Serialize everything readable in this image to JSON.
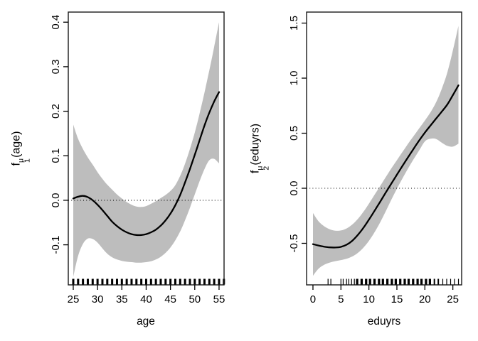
{
  "figure": {
    "background": "#ffffff",
    "band_color": "#bdbdbd",
    "line_color": "#000000",
    "axis_color": "#000000"
  },
  "chart_data": [
    {
      "type": "line",
      "title": "",
      "xlabel": "age",
      "ylabel": "f_1^μ(age)",
      "ylabel_parts": {
        "base": "f",
        "sup": "μ",
        "sub": "1",
        "arg": "(age)"
      },
      "xlim": [
        23.98,
        56.03
      ],
      "ylim": [
        -0.19,
        0.4227
      ],
      "grid": false,
      "zero_line": 0.0,
      "xticks": {
        "values": [
          25,
          30,
          35,
          40,
          45,
          50,
          55
        ],
        "labels": [
          "25",
          "30",
          "35",
          "40",
          "45",
          "50",
          "55"
        ]
      },
      "yticks": {
        "values": [
          -0.1,
          0.0,
          0.1,
          0.2,
          0.3,
          0.4
        ],
        "labels": [
          "-0.1",
          "0.0",
          "0.1",
          "0.2",
          "0.3",
          "0.4"
        ]
      },
      "x": [
        25,
        26,
        27,
        28,
        29,
        30,
        31,
        32,
        33,
        34,
        35,
        36,
        37,
        38,
        39,
        40,
        41,
        42,
        43,
        44,
        45,
        46,
        47,
        48,
        49,
        50,
        51,
        52,
        53,
        54,
        55
      ],
      "series": [
        {
          "name": "fit",
          "values": [
            0.004,
            0.008,
            0.01,
            0.007,
            0.0,
            -0.01,
            -0.022,
            -0.035,
            -0.048,
            -0.058,
            -0.066,
            -0.072,
            -0.076,
            -0.078,
            -0.078,
            -0.076,
            -0.072,
            -0.066,
            -0.057,
            -0.045,
            -0.03,
            -0.011,
            0.012,
            0.04,
            0.07,
            0.102,
            0.135,
            0.168,
            0.197,
            0.222,
            0.243
          ]
        },
        {
          "name": "ci_upper",
          "values": [
            0.17,
            0.138,
            0.115,
            0.096,
            0.08,
            0.063,
            0.048,
            0.035,
            0.024,
            0.013,
            0.004,
            -0.004,
            -0.01,
            -0.014,
            -0.015,
            -0.013,
            -0.008,
            -0.002,
            0.005,
            0.012,
            0.021,
            0.034,
            0.055,
            0.082,
            0.115,
            0.152,
            0.195,
            0.242,
            0.292,
            0.345,
            0.4
          ]
        },
        {
          "name": "ci_lower",
          "values": [
            -0.172,
            -0.125,
            -0.098,
            -0.086,
            -0.087,
            -0.095,
            -0.108,
            -0.12,
            -0.128,
            -0.133,
            -0.136,
            -0.138,
            -0.139,
            -0.14,
            -0.14,
            -0.139,
            -0.137,
            -0.133,
            -0.127,
            -0.118,
            -0.106,
            -0.09,
            -0.07,
            -0.045,
            -0.017,
            0.013,
            0.043,
            0.07,
            0.09,
            0.093,
            0.083
          ]
        }
      ],
      "rug": {
        "x": [
          25,
          26,
          27,
          28,
          29,
          30,
          31,
          32,
          33,
          34,
          35,
          36,
          37,
          38,
          39,
          40,
          41,
          42,
          43,
          44,
          45,
          46,
          47,
          48,
          49,
          50,
          51,
          52,
          53,
          54,
          55,
          56
        ],
        "widths": [
          3,
          3,
          3,
          3,
          3,
          3,
          3,
          3,
          3,
          3,
          3,
          3,
          3,
          3,
          3,
          3,
          3,
          3,
          3,
          3,
          3,
          3,
          3,
          3,
          3,
          3,
          3,
          3,
          3,
          3,
          3,
          3
        ]
      }
    },
    {
      "type": "line",
      "title": "",
      "xlabel": "eduyrs",
      "ylabel": "f_2^μ(eduyrs)",
      "ylabel_parts": {
        "base": "f",
        "sup": "μ",
        "sub": "2",
        "arg": "(eduyrs)"
      },
      "xlim": [
        -1.14,
        26.57
      ],
      "ylim": [
        -0.8774,
        1.6
      ],
      "grid": false,
      "zero_line": 0.0,
      "xticks": {
        "values": [
          0,
          5,
          10,
          15,
          20,
          25
        ],
        "labels": [
          "0",
          "5",
          "10",
          "15",
          "20",
          "25"
        ]
      },
      "yticks": {
        "values": [
          -0.5,
          0.0,
          0.5,
          1.0,
          1.5
        ],
        "labels": [
          "-0.5",
          "0.0",
          "0.5",
          "1.0",
          "1.5"
        ]
      },
      "x": [
        0,
        1,
        2,
        3,
        4,
        5,
        6,
        7,
        8,
        9,
        10,
        11,
        12,
        13,
        14,
        15,
        16,
        17,
        18,
        19,
        20,
        21,
        22,
        23,
        24,
        25,
        26
      ],
      "series": [
        {
          "name": "fit",
          "values": [
            -0.508,
            -0.52,
            -0.53,
            -0.537,
            -0.538,
            -0.532,
            -0.513,
            -0.478,
            -0.425,
            -0.36,
            -0.285,
            -0.205,
            -0.123,
            -0.04,
            0.042,
            0.123,
            0.203,
            0.282,
            0.36,
            0.435,
            0.505,
            0.57,
            0.632,
            0.695,
            0.76,
            0.845,
            0.935
          ]
        },
        {
          "name": "ci_upper",
          "values": [
            -0.225,
            -0.3,
            -0.345,
            -0.372,
            -0.385,
            -0.383,
            -0.365,
            -0.33,
            -0.28,
            -0.215,
            -0.14,
            -0.06,
            0.02,
            0.1,
            0.18,
            0.255,
            0.33,
            0.405,
            0.475,
            0.545,
            0.615,
            0.69,
            0.78,
            0.9,
            1.05,
            1.25,
            1.475
          ]
        },
        {
          "name": "ci_lower",
          "values": [
            -0.795,
            -0.73,
            -0.695,
            -0.675,
            -0.662,
            -0.652,
            -0.64,
            -0.62,
            -0.588,
            -0.54,
            -0.478,
            -0.4,
            -0.31,
            -0.21,
            -0.105,
            -0.005,
            0.09,
            0.18,
            0.265,
            0.345,
            0.425,
            0.45,
            0.448,
            0.415,
            0.385,
            0.378,
            0.405
          ]
        }
      ],
      "rug": {
        "x": [
          2.7,
          3.2,
          5.0,
          5.4,
          6.0,
          6.4,
          6.9,
          7.4,
          7.9,
          8.7,
          9.5,
          10.2,
          11.0,
          11.8,
          12.5,
          13.3,
          14.1,
          14.8,
          15.6,
          16.4,
          17.1,
          17.9,
          18.7,
          19.4,
          20.2,
          20.9,
          21.7,
          22.4,
          23.2,
          23.9,
          24.6,
          25.3,
          26.0
        ],
        "widths": [
          1.2,
          1.2,
          1.2,
          1.2,
          1.2,
          1.2,
          1.2,
          1.2,
          3.2,
          3.2,
          3.2,
          3.2,
          3.2,
          3.2,
          3.2,
          3.2,
          3.2,
          3.2,
          3.2,
          3.2,
          3.2,
          3.2,
          3.2,
          3.2,
          3.2,
          3.2,
          2.0,
          2.0,
          1.2,
          1.2,
          1.2,
          1.2,
          1.2
        ]
      }
    }
  ]
}
